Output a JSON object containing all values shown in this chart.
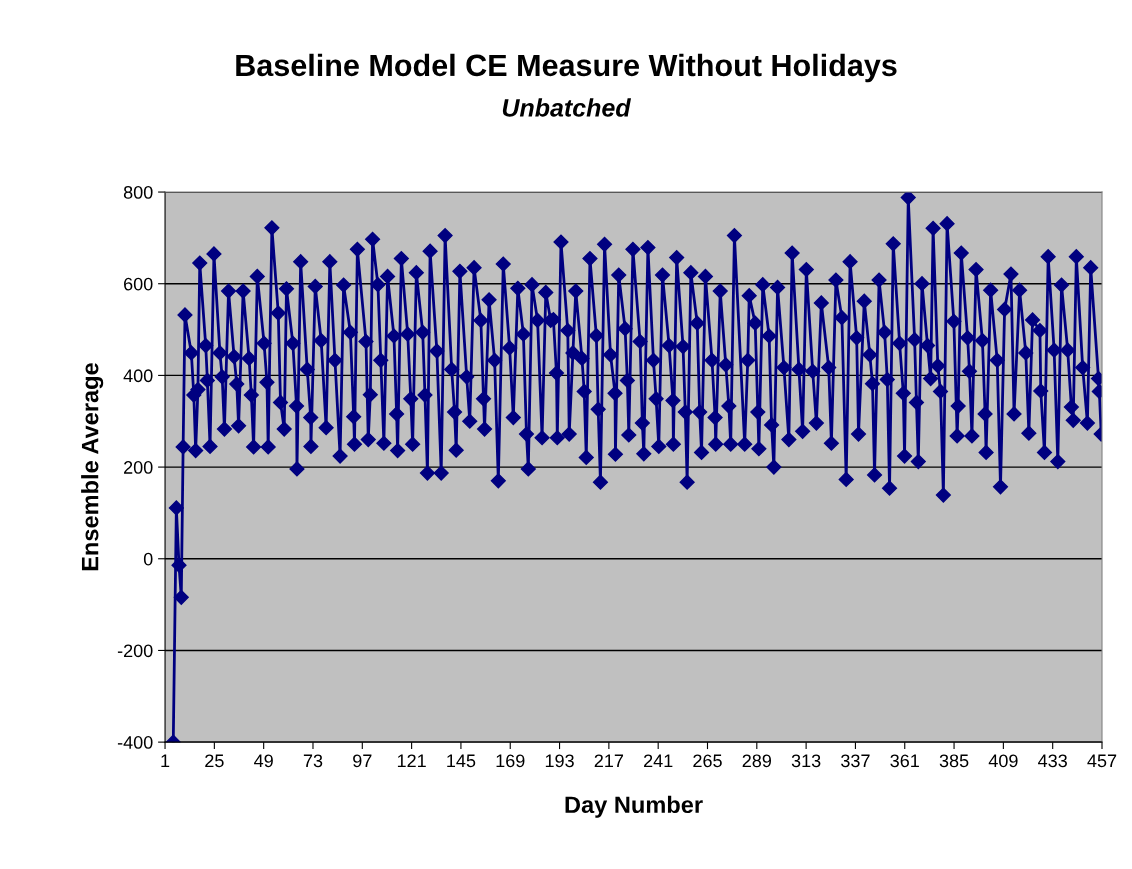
{
  "chart_data": {
    "type": "line",
    "title": "Baseline Model CE Measure Without Holidays",
    "subtitle": "Unbatched",
    "xlabel": "Day Number",
    "ylabel": "Ensemble Average",
    "xlim": [
      1,
      457
    ],
    "xticks": [
      1,
      25,
      49,
      73,
      97,
      121,
      145,
      169,
      193,
      217,
      241,
      265,
      289,
      313,
      337,
      361,
      385,
      409,
      433,
      457
    ],
    "ylim": [
      -400,
      800
    ],
    "yticks": [
      -400,
      -200,
      0,
      200,
      400,
      600,
      800
    ],
    "grid": "y",
    "marker": "diamond",
    "line_style": "solid",
    "series": [
      {
        "color": "#000080",
        "x": [
          5,
          6.5,
          7.8,
          8.9,
          9.8,
          10.7,
          13.8,
          15.0,
          15.9,
          17.0,
          17.9,
          20.8,
          21.6,
          22.9,
          24.8,
          27.7,
          28.8,
          29.9,
          31.9,
          34.6,
          35.9,
          36.8,
          39.0,
          41.9,
          43.0,
          44.1,
          45.9,
          49.2,
          50.6,
          51.2,
          53.0,
          56.1,
          57.2,
          59.0,
          60.1,
          63.2,
          65.0,
          65.2,
          67.0,
          70.2,
          71.9,
          72.0,
          74.1,
          77.0,
          79.4,
          81.2,
          83.7,
          86.2,
          87.9,
          91.2,
          92.8,
          93.2,
          94.6,
          98.8,
          99.9,
          100.9,
          102.0,
          104.6,
          106.0,
          107.5,
          109.3,
          112.4,
          113.7,
          114.2,
          116.0,
          119.1,
          120.6,
          121.5,
          123.3,
          126.4,
          127.5,
          128.7,
          130.0,
          133.3,
          135.4,
          137.3,
          140.5,
          141.9,
          142.7,
          144.5,
          147.8,
          149.3,
          151.4,
          154.7,
          156.0,
          156.5,
          158.7,
          161.4,
          163.2,
          165.6,
          168.7,
          170.5,
          172.7,
          175.4,
          176.9,
          177.8,
          179.6,
          182.3,
          184.5,
          186.3,
          188.7,
          190.0,
          191.5,
          191.9,
          193.7,
          197.0,
          197.7,
          199.5,
          200.9,
          203.9,
          205.0,
          206.0,
          207.8,
          210.9,
          211.8,
          212.9,
          214.9,
          217.8,
          220.0,
          220.2,
          221.8,
          224.9,
          226.0,
          226.7,
          228.7,
          232.2,
          233.3,
          234.0,
          236.0,
          238.7,
          240.0,
          241.3,
          243.1,
          246.3,
          248.2,
          248.4,
          250.0,
          253.1,
          254.2,
          255.1,
          256.9,
          260.0,
          261.2,
          262.1,
          264.0,
          267.2,
          268.7,
          269.0,
          271.2,
          273.9,
          275.4,
          276.3,
          278.1,
          283.1,
          284.6,
          285.3,
          288.2,
          289.5,
          290.0,
          291.9,
          295.0,
          296.2,
          297.3,
          299.1,
          302.2,
          304.6,
          306.2,
          309.5,
          311.3,
          313.1,
          316.2,
          318.0,
          320.4,
          324.0,
          325.3,
          327.5,
          330.4,
          332.5,
          334.4,
          337.6,
          338.5,
          341.3,
          344.0,
          345.3,
          346.3,
          348.5,
          351.2,
          352.5,
          353.6,
          355.4,
          358.5,
          360.3,
          360.9,
          362.7,
          365.8,
          366.7,
          367.6,
          369.4,
          372.1,
          373.6,
          374.8,
          377.1,
          378.4,
          379.8,
          381.6,
          384.9,
          386.5,
          387.0,
          388.5,
          391.6,
          392.5,
          393.7,
          395.7,
          398.8,
          400.1,
          400.6,
          402.8,
          406.0,
          407.6,
          409.6,
          412.7,
          414.2,
          416.9,
          419.9,
          421.4,
          423.2,
          426.8,
          427.2,
          429.0,
          430.8,
          433.7,
          435.5,
          437.3,
          440.3,
          442.1,
          443.0,
          444.5,
          447.6,
          449.9,
          451.5,
          455.3,
          455.7,
          456.6
        ],
        "values": [
          -400,
          111,
          -14,
          -84,
          244,
          532,
          449,
          357,
          236,
          369,
          645,
          465,
          389,
          245,
          665,
          449,
          397,
          283,
          584,
          441,
          381,
          290,
          584,
          437,
          357,
          244,
          616,
          470,
          385,
          244,
          722,
          536,
          341,
          283,
          589,
          470,
          333,
          196,
          648,
          413,
          308,
          245,
          594,
          476,
          286,
          648,
          433,
          224,
          597,
          494,
          310,
          250,
          675,
          474,
          260,
          358,
          697,
          598,
          433,
          252,
          616,
          486,
          316,
          236,
          655,
          490,
          349,
          250,
          624,
          494,
          357,
          187,
          671,
          453,
          187,
          705,
          413,
          320,
          237,
          627,
          397,
          300,
          635,
          520,
          349,
          283,
          565,
          433,
          170,
          643,
          460,
          308,
          590,
          490,
          272,
          196,
          598,
          520,
          264,
          581,
          520,
          522,
          405,
          264,
          691,
          498,
          272,
          449,
          584,
          437,
          365,
          221,
          655,
          487,
          326,
          167,
          686,
          445,
          361,
          228,
          619,
          502,
          389,
          270,
          675,
          474,
          296,
          229,
          679,
          433,
          349,
          245,
          619,
          465,
          345,
          250,
          657,
          463,
          320,
          167,
          624,
          514,
          320,
          232,
          616,
          433,
          308,
          250,
          584,
          423,
          333,
          250,
          705,
          250,
          433,
          574,
          514,
          320,
          240,
          598,
          486,
          292,
          200,
          592,
          417,
          260,
          667,
          413,
          278,
          631,
          409,
          296,
          558,
          417,
          252,
          608,
          526,
          173,
          648,
          482,
          272,
          562,
          445,
          382,
          183,
          608,
          494,
          391,
          154,
          687,
          470,
          361,
          224,
          788,
          478,
          341,
          212,
          600,
          465,
          393,
          721,
          421,
          365,
          139,
          731,
          518,
          268,
          333,
          667,
          482,
          409,
          268,
          631,
          476,
          316,
          232,
          586,
          433,
          157,
          544,
          621,
          316,
          586,
          449,
          274,
          521,
          498,
          366,
          232,
          659,
          455,
          212,
          597,
          455,
          331,
          302,
          659,
          417,
          296,
          635,
          393,
          365,
          272
        ]
      }
    ]
  }
}
